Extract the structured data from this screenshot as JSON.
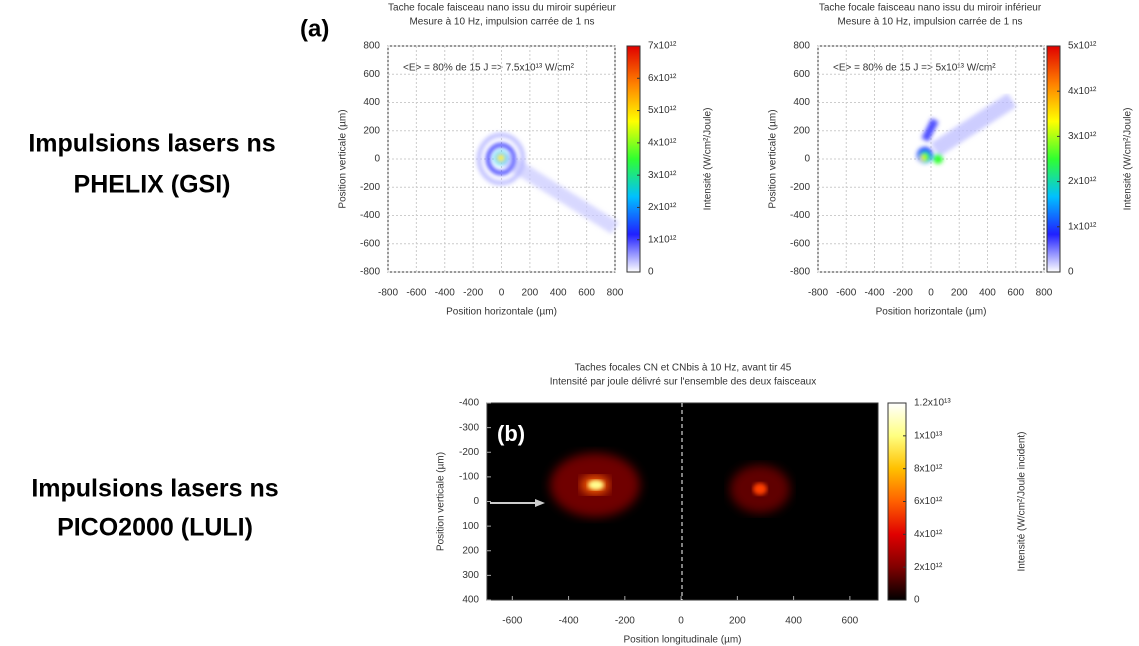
{
  "slide_labels": [
    [
      "Impulsions lasers ns",
      "PHELIX (GSI)"
    ],
    [
      "Impulsions lasers ns",
      "PICO2000 (LULI)"
    ]
  ],
  "panel_labels": [
    "(a)",
    "(b)"
  ],
  "chart_data": [
    {
      "type": "heatmap",
      "title": "Tache focale faisceau nano issu du miroir supérieur",
      "subtitle": "Mesure à 10 Hz, impulsion carrée de 1 ns",
      "annotation": "<E> = 80% de 15 J => 7.5x10¹³ W/cm²",
      "xlabel": "Position horizontale (µm)",
      "ylabel": "Position verticale (µm)",
      "xlim": [
        -800,
        800
      ],
      "xticks": [
        -800,
        -600,
        -400,
        -200,
        0,
        200,
        400,
        600,
        800
      ],
      "ylim": [
        -800,
        800
      ],
      "yticks": [
        -800,
        -600,
        -400,
        -200,
        0,
        200,
        400,
        600,
        800
      ],
      "grid": true,
      "colorbar": {
        "label": "Intensité (W/cm²/Joule)",
        "lim": [
          0,
          7000000000000
        ],
        "colormap": [
          "#ffffff",
          "#2020ff",
          "#00c0ff",
          "#30ff30",
          "#ffff00",
          "#ff8000",
          "#e00000"
        ],
        "ticks": [
          0,
          {
            "value": 1000000000000,
            "label": "1x10¹²"
          },
          {
            "value": 2000000000000,
            "label": "2x10¹²"
          },
          {
            "value": 3000000000000,
            "label": "3x10¹²"
          },
          {
            "value": 4000000000000,
            "label": "4x10¹²"
          },
          {
            "value": 5000000000000,
            "label": "5x10¹²"
          },
          {
            "value": 6000000000000,
            "label": "6x10¹²"
          },
          {
            "value": 7000000000000,
            "label": "7x10¹²"
          }
        ]
      }
    },
    {
      "type": "heatmap",
      "title": "Tache focale faisceau nano issu du miroir inférieur",
      "subtitle": "Mesure à 10 Hz, impulsion carrée de 1 ns",
      "annotation": "<E> = 80% de 15 J => 5x10¹³ W/cm²",
      "xlabel": "Position horizontale (µm)",
      "ylabel": "Position verticale (µm)",
      "xlim": [
        -800,
        800
      ],
      "xticks": [
        -800,
        -600,
        -400,
        -200,
        0,
        200,
        400,
        600,
        800
      ],
      "ylim": [
        -800,
        800
      ],
      "yticks": [
        -800,
        -600,
        -400,
        -200,
        0,
        200,
        400,
        600,
        800
      ],
      "grid": true,
      "colorbar": {
        "label": "Intensité (W/cm²/Joule)",
        "lim": [
          0,
          5000000000000
        ],
        "colormap": [
          "#ffffff",
          "#2020ff",
          "#00c0ff",
          "#30ff30",
          "#ffff00",
          "#ff8000",
          "#e00000"
        ],
        "ticks": [
          0,
          {
            "value": 1000000000000,
            "label": "1x10¹²"
          },
          {
            "value": 2000000000000,
            "label": "2x10¹²"
          },
          {
            "value": 3000000000000,
            "label": "3x10¹²"
          },
          {
            "value": 4000000000000,
            "label": "4x10¹²"
          },
          {
            "value": 5000000000000,
            "label": "5x10¹²"
          }
        ]
      }
    },
    {
      "type": "heatmap",
      "title": "Taches focales CN et CNbis à 10 Hz, avant tir 45",
      "subtitle": "Intensité par joule délivré sur l'ensemble des deux faisceaux",
      "xlabel": "Position longitudinale (µm)",
      "ylabel": "Position verticale (µm)",
      "xlim": [
        -690,
        700
      ],
      "xticks": [
        -600,
        -400,
        -200,
        0,
        200,
        400,
        600
      ],
      "ylim": [
        400,
        -400
      ],
      "yticks": [
        -400,
        -300,
        -200,
        -100,
        0,
        100,
        200,
        300,
        400
      ],
      "grid": false,
      "colorbar": {
        "label": "Intensité (W/cm²/Joule incident)",
        "lim": [
          0,
          12000000000000
        ],
        "colormap": [
          "#000000",
          "#800000",
          "#e00000",
          "#ff6000",
          "#ffc000",
          "#ffff80",
          "#ffffff"
        ],
        "ticks": [
          0,
          {
            "value": 2000000000000,
            "label": "2x10¹²"
          },
          {
            "value": 4000000000000,
            "label": "4x10¹²"
          },
          {
            "value": 6000000000000,
            "label": "6x10¹²"
          },
          {
            "value": 8000000000000,
            "label": "8x10¹²"
          },
          {
            "value": 10000000000000,
            "label": "1x10¹³"
          },
          {
            "value": 12000000000000,
            "label": "1.2x10¹³"
          }
        ]
      }
    }
  ]
}
